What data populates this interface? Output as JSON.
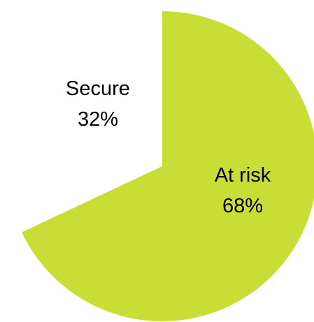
{
  "chart_data": {
    "type": "pie",
    "title": "",
    "start_angle_deg": 0,
    "direction": "clockwise",
    "slices": [
      {
        "label": "At risk",
        "percent_label": "68%",
        "value": 68,
        "color": "#c8de36",
        "fill_visible": true
      },
      {
        "label": "Secure",
        "percent_label": "32%",
        "value": 32,
        "color": "#ffffff",
        "fill_visible": false
      }
    ],
    "legend": "none"
  }
}
